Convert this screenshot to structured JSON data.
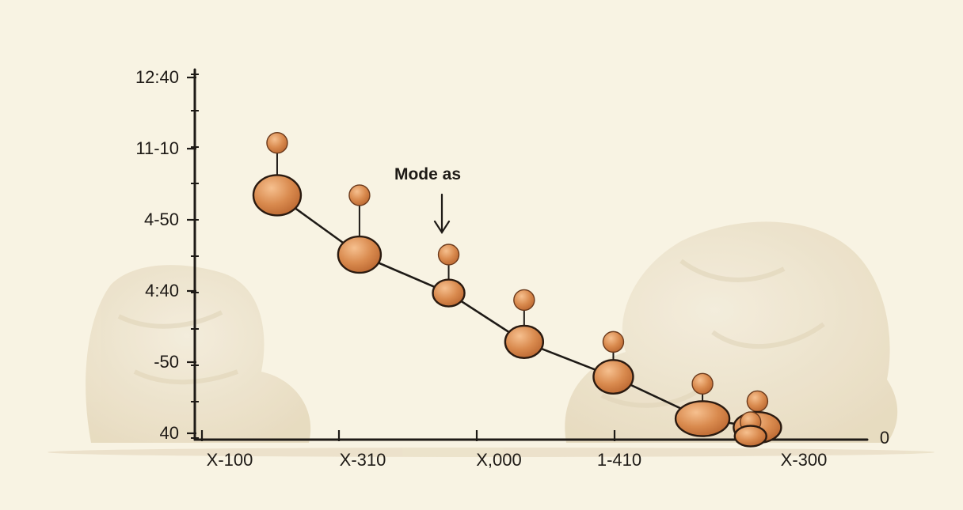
{
  "chart_data": {
    "type": "scatter",
    "title": "",
    "xlabel": "",
    "ylabel": "",
    "y_tick_labels": [
      "12:40",
      "11-10",
      "4-50",
      "4:40",
      "-50",
      "40"
    ],
    "x_tick_labels": [
      "X-100",
      "X-310",
      "X,000",
      "1-410",
      "X-300"
    ],
    "x_axis_end_label": "0",
    "annotation": "Mode as",
    "grid": false,
    "legend": "none",
    "note": "points connected by a line; each point has a small marker raised above it on a stem",
    "series": [
      {
        "points": [
          {
            "x": 0.55,
            "y": 7.0,
            "marker": 8.5
          },
          {
            "x": 1.15,
            "y": 5.3,
            "marker": 7.0
          },
          {
            "x": 1.8,
            "y": 4.2,
            "marker": 5.3
          },
          {
            "x": 2.35,
            "y": 2.8,
            "marker": 4.0
          },
          {
            "x": 3.0,
            "y": 1.8,
            "marker": 2.8
          },
          {
            "x": 3.65,
            "y": 0.6,
            "marker": 1.6
          },
          {
            "x": 4.05,
            "y": 0.35,
            "marker": 1.1
          },
          {
            "x": 4.0,
            "y": 0.1,
            "marker": 0.5
          }
        ]
      }
    ],
    "xlim": [
      -0.05,
      4.85
    ],
    "ylim": [
      0,
      10.6
    ]
  },
  "colors": {
    "background": "#f8f3e3",
    "axis": "#1e1a16",
    "point": "#d98a4e",
    "point_dark": "#6b3a1c",
    "point_light": "#f2b888",
    "rock": "#ece2cc"
  }
}
